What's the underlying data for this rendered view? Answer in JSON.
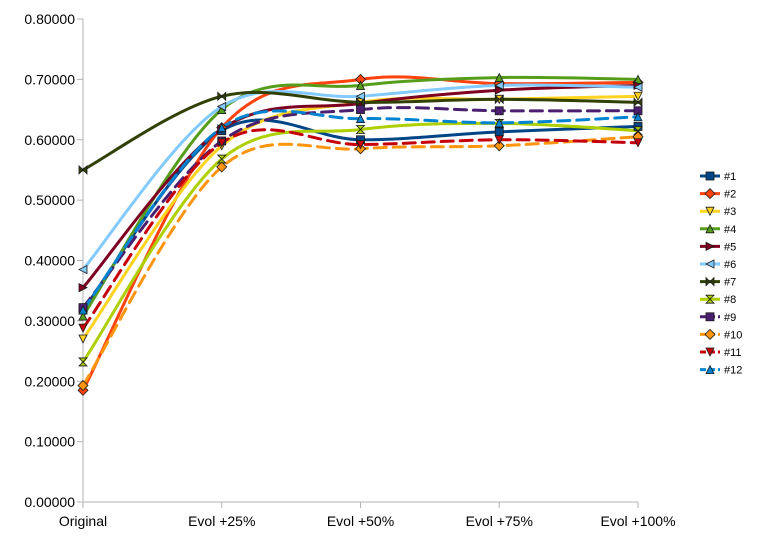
{
  "chart_data": {
    "type": "line",
    "title": "",
    "xlabel": "",
    "ylabel": "",
    "categories": [
      "Original",
      "Evol +25%",
      "Evol +50%",
      "Evol +75%",
      "Evol +100%"
    ],
    "ylim": [
      0,
      0.8
    ],
    "yticks": [
      "0.00000",
      "0.10000",
      "0.20000",
      "0.30000",
      "0.40000",
      "0.50000",
      "0.60000",
      "0.70000",
      "0.80000"
    ],
    "grid": "none",
    "legend_position": "right",
    "series": [
      {
        "name": "#1",
        "color": "#004586",
        "marker": "square",
        "dash": false,
        "values": [
          0.318,
          0.615,
          0.6,
          0.613,
          0.622
        ]
      },
      {
        "name": "#2",
        "color": "#ff420e",
        "marker": "diamond",
        "dash": false,
        "values": [
          0.185,
          0.62,
          0.7,
          0.693,
          0.695
        ]
      },
      {
        "name": "#3",
        "color": "#ffd320",
        "marker": "triangle-down",
        "dash": false,
        "values": [
          0.27,
          0.59,
          0.662,
          0.667,
          0.672
        ]
      },
      {
        "name": "#4",
        "color": "#579d1c",
        "marker": "triangle-up",
        "dash": false,
        "values": [
          0.308,
          0.65,
          0.69,
          0.703,
          0.7
        ]
      },
      {
        "name": "#5",
        "color": "#7e0021",
        "marker": "triangle-right",
        "dash": false,
        "values": [
          0.355,
          0.618,
          0.66,
          0.682,
          0.69
        ]
      },
      {
        "name": "#6",
        "color": "#83caff",
        "marker": "triangle-left",
        "dash": false,
        "values": [
          0.385,
          0.655,
          0.672,
          0.69,
          0.687
        ]
      },
      {
        "name": "#7",
        "color": "#314004",
        "marker": "bowtie",
        "dash": false,
        "values": [
          0.55,
          0.672,
          0.662,
          0.667,
          0.662
        ]
      },
      {
        "name": "#8",
        "color": "#aecf00",
        "marker": "hourglass",
        "dash": false,
        "values": [
          0.232,
          0.568,
          0.617,
          0.627,
          0.615
        ]
      },
      {
        "name": "#9",
        "color": "#4b1f6f",
        "marker": "square",
        "dash": true,
        "values": [
          0.322,
          0.598,
          0.65,
          0.648,
          0.648
        ]
      },
      {
        "name": "#10",
        "color": "#ff950e",
        "marker": "diamond",
        "dash": true,
        "values": [
          0.193,
          0.555,
          0.585,
          0.59,
          0.605
        ]
      },
      {
        "name": "#11",
        "color": "#c5000b",
        "marker": "triangle-down",
        "dash": true,
        "values": [
          0.288,
          0.595,
          0.592,
          0.6,
          0.595
        ]
      },
      {
        "name": "#12",
        "color": "#0084d1",
        "marker": "triangle-up",
        "dash": true,
        "values": [
          0.318,
          0.62,
          0.635,
          0.628,
          0.638
        ]
      }
    ]
  }
}
